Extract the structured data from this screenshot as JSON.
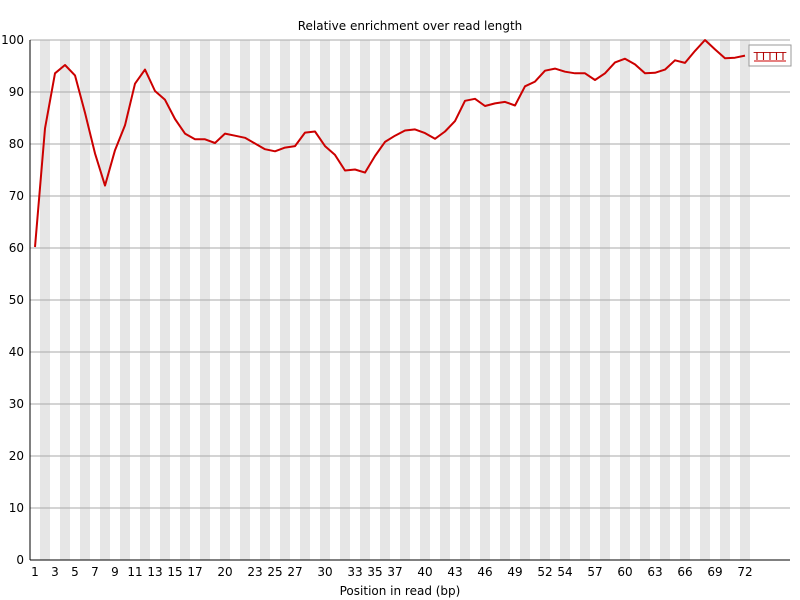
{
  "chart_data": {
    "type": "line",
    "title": "Relative enrichment over read length",
    "xlabel": "Position in read (bp)",
    "ylabel": "",
    "ylim": [
      0,
      100
    ],
    "yticks": [
      0,
      10,
      20,
      30,
      40,
      50,
      60,
      70,
      80,
      90,
      100
    ],
    "x_tick_labels": [
      "1",
      "3",
      "5",
      "7",
      "9",
      "11",
      "13",
      "15",
      "17",
      "20",
      "23",
      "25",
      "27",
      "30",
      "33",
      "35",
      "37",
      "40",
      "43",
      "46",
      "49",
      "52",
      "54",
      "57",
      "60",
      "63",
      "66",
      "69",
      "72"
    ],
    "grid": true,
    "legend_position": "top-right",
    "series": [
      {
        "name": "TTTTT",
        "color": "#cc0000",
        "x": [
          1,
          2,
          3,
          4,
          5,
          6,
          7,
          8,
          9,
          10,
          11,
          12,
          13,
          14,
          15,
          16,
          17,
          18,
          19,
          20,
          21,
          22,
          23,
          24,
          25,
          26,
          27,
          28,
          29,
          30,
          31,
          32,
          33,
          34,
          35,
          36,
          37,
          38,
          39,
          40,
          41,
          42,
          43,
          44,
          45,
          46,
          47,
          48,
          49,
          50,
          51,
          52,
          53,
          54,
          55,
          56,
          57,
          58,
          59,
          60,
          61,
          62,
          63,
          64,
          65,
          66,
          67,
          68,
          69,
          70,
          71,
          72
        ],
        "values": [
          60.2,
          83.0,
          93.6,
          95.2,
          93.2,
          86.0,
          78.2,
          72.0,
          78.8,
          83.6,
          91.6,
          94.3,
          90.2,
          88.5,
          84.8,
          82.0,
          80.9,
          80.9,
          80.2,
          82.0,
          81.6,
          81.2,
          80.1,
          79.0,
          78.6,
          79.3,
          79.6,
          82.2,
          82.4,
          79.6,
          77.9,
          74.9,
          75.1,
          74.5,
          77.7,
          80.4,
          81.6,
          82.6,
          82.8,
          82.1,
          81.0,
          82.4,
          84.4,
          88.3,
          88.7,
          87.3,
          87.8,
          88.1,
          87.4,
          91.1,
          92.0,
          94.1,
          94.5,
          93.9,
          93.6,
          93.6,
          92.3,
          93.6,
          95.7,
          96.4,
          95.3,
          93.6,
          93.7,
          94.3,
          96.1,
          95.6,
          97.9,
          100.0,
          98.2,
          96.5,
          96.6,
          97.0
        ]
      }
    ]
  }
}
